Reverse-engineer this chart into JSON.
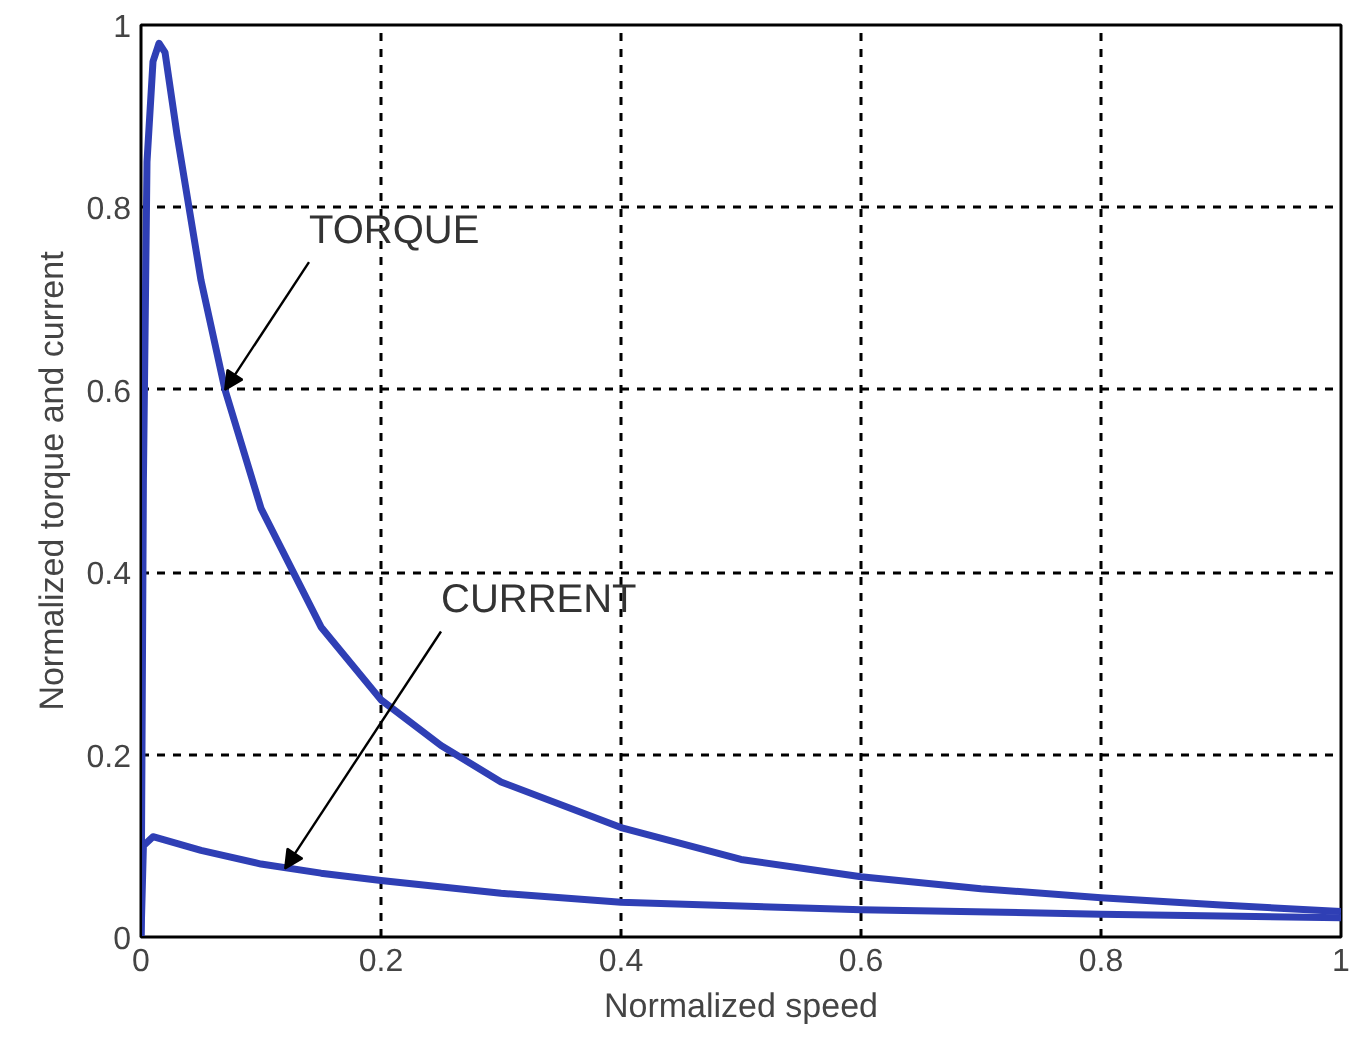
{
  "chart_data": {
    "type": "line",
    "xlabel": "Normalized speed",
    "ylabel": "Normalized torque and current",
    "xlim": [
      0,
      1
    ],
    "ylim": [
      0,
      1
    ],
    "xticks": [
      0,
      0.2,
      0.4,
      0.6,
      0.8,
      1
    ],
    "yticks": [
      0,
      0.2,
      0.4,
      0.6,
      0.8,
      1
    ],
    "grid": true,
    "line_style": "solid",
    "series": [
      {
        "color": "#2f3fb5",
        "x": [
          0,
          0.002,
          0.005,
          0.01,
          0.015,
          0.02,
          0.03,
          0.05,
          0.07,
          0.1,
          0.15,
          0.2,
          0.25,
          0.3,
          0.4,
          0.5,
          0.6,
          0.7,
          0.8,
          0.9,
          1.0
        ],
        "values": [
          0,
          0.5,
          0.85,
          0.96,
          0.98,
          0.97,
          0.88,
          0.72,
          0.6,
          0.47,
          0.34,
          0.26,
          0.21,
          0.17,
          0.12,
          0.085,
          0.066,
          0.053,
          0.043,
          0.035,
          0.028
        ]
      },
      {
        "color": "#2f3fb5",
        "x": [
          0,
          0.002,
          0.01,
          0.05,
          0.1,
          0.15,
          0.2,
          0.3,
          0.4,
          0.6,
          0.8,
          1.0
        ],
        "values": [
          0,
          0.1,
          0.11,
          0.095,
          0.08,
          0.07,
          0.062,
          0.048,
          0.038,
          0.03,
          0.025,
          0.021
        ]
      }
    ],
    "annotations": [
      {
        "text": "TORQUE",
        "x": 0.07,
        "y": 0.6
      },
      {
        "text": "CURRENT",
        "x": 0.12,
        "y": 0.075
      }
    ]
  }
}
